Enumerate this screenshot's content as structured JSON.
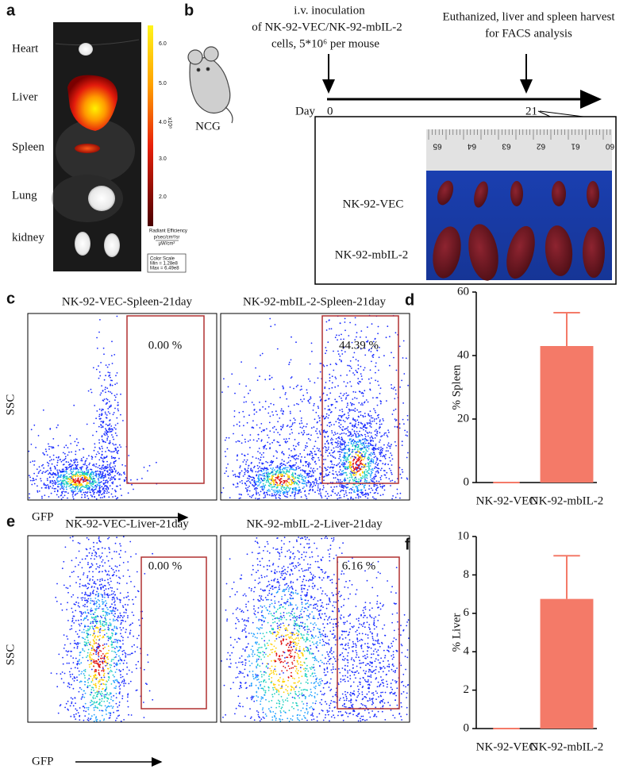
{
  "panel_a": {
    "label": "a",
    "organs": [
      "Heart",
      "Liver",
      "Spleen",
      "Lung",
      "kidney"
    ],
    "colorbar_ticks": [
      "6.0",
      "5.0",
      "4.0",
      "3.0",
      "2.0"
    ],
    "colorbar_exponent": "x10⁸",
    "colorbar_title": "Radiant Efficiency",
    "colorbar_units": [
      "p/sec/cm²/sr",
      "μW/cm²"
    ],
    "color_scale": {
      "title": "Color Scale",
      "min": "Min = 1.28e8",
      "max": "Max = 6.49e8"
    }
  },
  "panel_b": {
    "label": "b",
    "mouse": "NCG",
    "inoculation": [
      "i.v. inoculation",
      "of NK-92-VEC/NK-92-mbIL-2",
      "cells, 5*10⁶ per mouse"
    ],
    "harvest": [
      "Euthanized, liver and spleen harvest",
      "for FACS analysis"
    ],
    "timeline": {
      "unit": "Day",
      "start": "0",
      "end": "21"
    },
    "ruler": [
      "65",
      "64",
      "63",
      "62",
      "61",
      "60"
    ],
    "rows": [
      "NK-92-VEC",
      "NK-92-mbIL-2"
    ]
  },
  "panel_c": {
    "label": "c",
    "titles": [
      "NK-92-VEC-Spleen-21day",
      "NK-92-mbIL-2-Spleen-21day"
    ],
    "gates": [
      "0.00 %",
      "44.39 %"
    ],
    "y_axis": "SSC",
    "x_axis": "GFP"
  },
  "panel_e": {
    "label": "e",
    "titles": [
      "NK-92-VEC-Liver-21day",
      "NK-92-mbIL-2-Liver-21day"
    ],
    "gates": [
      "0.00 %",
      "6.16 %"
    ],
    "y_axis": "SSC",
    "x_axis": "GFP"
  },
  "chart_data": [
    {
      "type": "bar",
      "panel_label": "d",
      "y_label": "% Spleen",
      "categories": [
        "NK-92-VEC",
        "NK-92-mbIL-2"
      ],
      "values": [
        0,
        43
      ],
      "errors": [
        0,
        10.5
      ],
      "color": "#f47a68",
      "ylim": [
        0,
        60
      ],
      "yticks": [
        0,
        20,
        40,
        60
      ]
    },
    {
      "type": "bar",
      "panel_label": "f",
      "y_label": "% Liver",
      "categories": [
        "NK-92-VEC",
        "NK-92-mbIL-2"
      ],
      "values": [
        0,
        6.75
      ],
      "errors": [
        0,
        2.25
      ],
      "color": "#f47a68",
      "ylim": [
        0,
        10
      ],
      "yticks": [
        0,
        2,
        4,
        6,
        8,
        10
      ]
    }
  ]
}
